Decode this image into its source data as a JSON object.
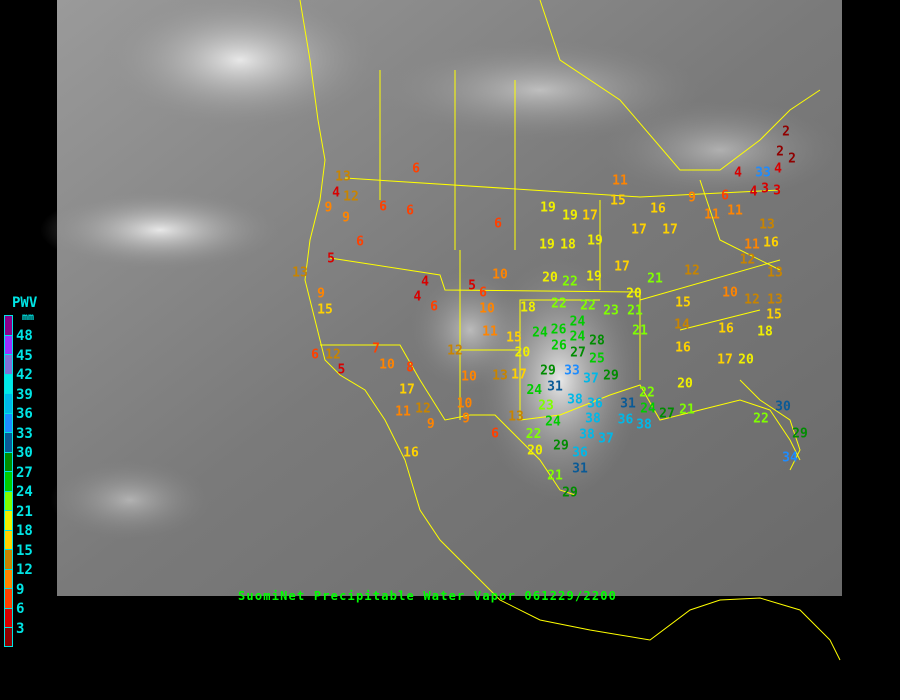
{
  "caption": "SuomiNet Precipitable Water Vapor 061229/2200",
  "legend": {
    "title": "PWV",
    "unit": "mm",
    "ticks": [
      "48",
      "45",
      "42",
      "39",
      "36",
      "33",
      "30",
      "27",
      "24",
      "21",
      "18",
      "15",
      "12",
      "9",
      "6",
      "3"
    ],
    "colors": [
      "#8b008b",
      "#9a30ff",
      "#8070d8",
      "#00e8e8",
      "#00b8e8",
      "#1e8cff",
      "#0a5a96",
      "#008c00",
      "#00cc00",
      "#80ff00",
      "#f0f000",
      "#ffd200",
      "#c88400",
      "#ff8400",
      "#ff4000",
      "#d80000",
      "#900000"
    ]
  },
  "stations": [
    {
      "value": "13"
    },
    {
      "value": "4"
    },
    {
      "value": "12"
    },
    {
      "value": "9"
    },
    {
      "value": "9"
    },
    {
      "value": "6"
    },
    {
      "value": "6"
    },
    {
      "value": "6"
    },
    {
      "value": "6"
    },
    {
      "value": "5"
    },
    {
      "value": "6"
    },
    {
      "value": "13"
    },
    {
      "value": "9"
    },
    {
      "value": "15"
    },
    {
      "value": "4"
    },
    {
      "value": "4"
    },
    {
      "value": "5"
    },
    {
      "value": "6"
    },
    {
      "value": "6"
    },
    {
      "value": "10"
    },
    {
      "value": "10"
    },
    {
      "value": "11"
    },
    {
      "value": "15"
    },
    {
      "value": "12"
    },
    {
      "value": "20"
    },
    {
      "value": "7"
    },
    {
      "value": "6"
    },
    {
      "value": "12"
    },
    {
      "value": "5"
    },
    {
      "value": "10"
    },
    {
      "value": "8"
    },
    {
      "value": "10"
    },
    {
      "value": "13"
    },
    {
      "value": "17"
    },
    {
      "value": "17"
    },
    {
      "value": "11"
    },
    {
      "value": "12"
    },
    {
      "value": "9"
    },
    {
      "value": "9"
    },
    {
      "value": "10"
    },
    {
      "value": "13"
    },
    {
      "value": "6"
    },
    {
      "value": "16"
    },
    {
      "value": "20"
    },
    {
      "value": "22"
    },
    {
      "value": "19"
    },
    {
      "value": "17"
    },
    {
      "value": "18"
    },
    {
      "value": "22"
    },
    {
      "value": "22"
    },
    {
      "value": "23"
    },
    {
      "value": "21"
    },
    {
      "value": "24"
    },
    {
      "value": "20"
    },
    {
      "value": "21"
    },
    {
      "value": "21"
    },
    {
      "value": "24"
    },
    {
      "value": "26"
    },
    {
      "value": "24"
    },
    {
      "value": "28"
    },
    {
      "value": "26"
    },
    {
      "value": "27"
    },
    {
      "value": "25"
    },
    {
      "value": "29"
    },
    {
      "value": "31"
    },
    {
      "value": "33"
    },
    {
      "value": "37"
    },
    {
      "value": "29"
    },
    {
      "value": "24"
    },
    {
      "value": "23"
    },
    {
      "value": "24"
    },
    {
      "value": "22"
    },
    {
      "value": "38"
    },
    {
      "value": "36"
    },
    {
      "value": "38"
    },
    {
      "value": "38"
    },
    {
      "value": "37"
    },
    {
      "value": "36"
    },
    {
      "value": "31"
    },
    {
      "value": "29"
    },
    {
      "value": "20"
    },
    {
      "value": "21"
    },
    {
      "value": "29"
    },
    {
      "value": "31"
    },
    {
      "value": "36"
    },
    {
      "value": "38"
    },
    {
      "value": "24"
    },
    {
      "value": "27"
    },
    {
      "value": "22"
    },
    {
      "value": "21"
    },
    {
      "value": "20"
    },
    {
      "value": "12"
    },
    {
      "value": "10"
    },
    {
      "value": "12"
    },
    {
      "value": "13"
    },
    {
      "value": "13"
    },
    {
      "value": "15"
    },
    {
      "value": "14"
    },
    {
      "value": "16"
    },
    {
      "value": "18"
    },
    {
      "value": "15"
    },
    {
      "value": "16"
    },
    {
      "value": "17"
    },
    {
      "value": "20"
    },
    {
      "value": "30"
    },
    {
      "value": "22"
    },
    {
      "value": "29"
    },
    {
      "value": "34"
    },
    {
      "value": "11"
    },
    {
      "value": "15"
    },
    {
      "value": "16"
    },
    {
      "value": "17"
    },
    {
      "value": "17"
    },
    {
      "value": "9"
    },
    {
      "value": "6"
    },
    {
      "value": "11"
    },
    {
      "value": "11"
    },
    {
      "value": "4"
    },
    {
      "value": "33"
    },
    {
      "value": "4"
    },
    {
      "value": "3"
    },
    {
      "value": "4"
    },
    {
      "value": "3"
    },
    {
      "value": "2"
    },
    {
      "value": "2"
    },
    {
      "value": "2"
    },
    {
      "value": "13"
    },
    {
      "value": "11"
    },
    {
      "value": "16"
    },
    {
      "value": "12"
    },
    {
      "value": "19"
    },
    {
      "value": "18"
    },
    {
      "value": "19"
    },
    {
      "value": "19"
    },
    {
      "value": "19"
    },
    {
      "value": "17"
    }
  ]
}
